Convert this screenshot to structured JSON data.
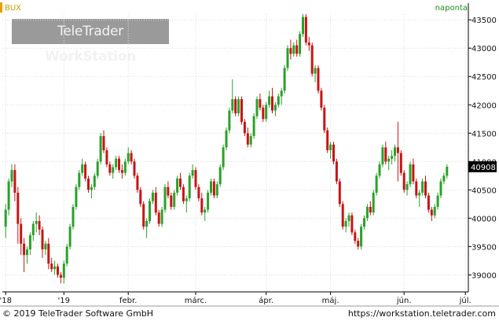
{
  "header": {
    "symbol": "BUX",
    "frequency": "naponta"
  },
  "watermark": {
    "brand_light": "TeleTrader",
    "brand_bold": "WorkStation"
  },
  "footer": {
    "copyright": "© 2019 TeleTrader Software GmbH",
    "url": "https://workstation.teletrader.com"
  },
  "colors": {
    "up": "#2aa12a",
    "down": "#c81414",
    "grid": "#dcdcdc",
    "axis": "#000000",
    "label_bg": "#000000"
  },
  "chart_data": {
    "type": "candlestick",
    "title": "BUX",
    "ylim": [
      38700,
      43600
    ],
    "y_ticks": [
      39000,
      39500,
      40000,
      40500,
      41000,
      41500,
      42000,
      42500,
      43000,
      43500
    ],
    "y_tick_labels": [
      "39000",
      "39500",
      "40000",
      "40500",
      "41000",
      "41500",
      "42000",
      "42500",
      "43000",
      "43500"
    ],
    "x_labels": [
      {
        "label": "'18",
        "index": 0
      },
      {
        "label": "'19",
        "index": 19
      },
      {
        "label": "febr.",
        "index": 40
      },
      {
        "label": "márc.",
        "index": 62
      },
      {
        "label": "ápr.",
        "index": 85
      },
      {
        "label": "máj.",
        "index": 106
      },
      {
        "label": "jún.",
        "index": 130
      },
      {
        "label": "júl.",
        "index": 150
      }
    ],
    "last_value": 40908,
    "last_value_label": "40908",
    "grid": true,
    "candles": [
      [
        39850,
        40250,
        39650,
        40150
      ],
      [
        40150,
        40700,
        40050,
        40650
      ],
      [
        40650,
        40950,
        40550,
        40850
      ],
      [
        40850,
        40950,
        40300,
        40450
      ],
      [
        40450,
        40550,
        39550,
        39900
      ],
      [
        39900,
        40000,
        39350,
        39550
      ],
      [
        39550,
        39650,
        39050,
        39350
      ],
      [
        39350,
        39500,
        39200,
        39450
      ],
      [
        39450,
        39750,
        39350,
        39700
      ],
      [
        39700,
        39950,
        39600,
        39900
      ],
      [
        39900,
        40100,
        39750,
        39950
      ],
      [
        39950,
        40050,
        39700,
        39800
      ],
      [
        39800,
        39850,
        39300,
        39450
      ],
      [
        39450,
        39600,
        39350,
        39550
      ],
      [
        39550,
        39650,
        39100,
        39200
      ],
      [
        39200,
        39300,
        39050,
        39100
      ],
      [
        39100,
        39250,
        39000,
        39150
      ],
      [
        39150,
        39200,
        38950,
        39000
      ],
      [
        39000,
        39050,
        38850,
        38950
      ],
      [
        38950,
        39250,
        38850,
        39200
      ],
      [
        39200,
        39550,
        39150,
        39500
      ],
      [
        39500,
        39900,
        39450,
        39850
      ],
      [
        39850,
        40250,
        39800,
        40200
      ],
      [
        40200,
        40600,
        40150,
        40550
      ],
      [
        40550,
        40850,
        40500,
        40800
      ],
      [
        40800,
        41050,
        40750,
        40950
      ],
      [
        40950,
        41000,
        40650,
        40700
      ],
      [
        40700,
        40750,
        40450,
        40500
      ],
      [
        40500,
        40600,
        40350,
        40550
      ],
      [
        40550,
        40800,
        40500,
        40750
      ],
      [
        40750,
        41050,
        40700,
        41000
      ],
      [
        41000,
        41500,
        40950,
        41450
      ],
      [
        41450,
        41550,
        41150,
        41200
      ],
      [
        41200,
        41250,
        40900,
        40950
      ],
      [
        40950,
        41000,
        40750,
        40800
      ],
      [
        40800,
        40950,
        40700,
        40900
      ],
      [
        40900,
        41100,
        40850,
        41050
      ],
      [
        41050,
        41100,
        40800,
        40850
      ],
      [
        40850,
        40950,
        40700,
        40800
      ],
      [
        40800,
        41050,
        40750,
        41000
      ],
      [
        41000,
        41250,
        40950,
        41150
      ],
      [
        41150,
        41200,
        40950,
        41000
      ],
      [
        41000,
        41050,
        40700,
        40750
      ],
      [
        40750,
        40800,
        40450,
        40500
      ],
      [
        40500,
        40550,
        40200,
        40250
      ],
      [
        40250,
        40300,
        39800,
        39850
      ],
      [
        39850,
        40000,
        39650,
        39950
      ],
      [
        39950,
        40350,
        39900,
        40300
      ],
      [
        40300,
        40500,
        40250,
        40450
      ],
      [
        40450,
        40550,
        40050,
        40100
      ],
      [
        40100,
        40150,
        39850,
        39900
      ],
      [
        39900,
        40200,
        39850,
        40150
      ],
      [
        40150,
        40600,
        40100,
        40550
      ],
      [
        40550,
        40650,
        40350,
        40400
      ],
      [
        40400,
        40450,
        40150,
        40200
      ],
      [
        40200,
        40500,
        40150,
        40450
      ],
      [
        40450,
        40750,
        40400,
        40700
      ],
      [
        40700,
        40800,
        40500,
        40550
      ],
      [
        40550,
        40600,
        40250,
        40300
      ],
      [
        40300,
        40400,
        40100,
        40350
      ],
      [
        40350,
        40800,
        40300,
        40750
      ],
      [
        40750,
        40950,
        40700,
        40850
      ],
      [
        40850,
        40900,
        40500,
        40550
      ],
      [
        40550,
        40600,
        40300,
        40350
      ],
      [
        40350,
        40450,
        40050,
        40100
      ],
      [
        40100,
        40200,
        39950,
        40150
      ],
      [
        40150,
        40500,
        40100,
        40450
      ],
      [
        40450,
        40700,
        40400,
        40650
      ],
      [
        40650,
        40700,
        40350,
        40400
      ],
      [
        40400,
        40650,
        40350,
        40600
      ],
      [
        40600,
        40950,
        40550,
        40900
      ],
      [
        40900,
        41300,
        40850,
        41250
      ],
      [
        41250,
        41600,
        41200,
        41550
      ],
      [
        41550,
        41950,
        41500,
        41900
      ],
      [
        41900,
        42450,
        41850,
        42100
      ],
      [
        42100,
        42150,
        41800,
        41850
      ],
      [
        41850,
        42150,
        41800,
        42100
      ],
      [
        42100,
        42150,
        41650,
        41700
      ],
      [
        41700,
        41750,
        41450,
        41500
      ],
      [
        41500,
        41600,
        41250,
        41300
      ],
      [
        41300,
        41500,
        41250,
        41450
      ],
      [
        41450,
        41850,
        41400,
        41800
      ],
      [
        41800,
        42150,
        41750,
        42100
      ],
      [
        42100,
        42200,
        41900,
        41950
      ],
      [
        41950,
        42000,
        41700,
        41750
      ],
      [
        41750,
        42050,
        41700,
        42000
      ],
      [
        42000,
        42250,
        41950,
        42150
      ],
      [
        42150,
        42300,
        41850,
        41900
      ],
      [
        41900,
        42050,
        41800,
        42000
      ],
      [
        42000,
        42200,
        41950,
        42150
      ],
      [
        42150,
        42300,
        42000,
        42250
      ],
      [
        42250,
        42700,
        42200,
        42650
      ],
      [
        42650,
        43050,
        42600,
        43000
      ],
      [
        43000,
        43150,
        42800,
        42900
      ],
      [
        42900,
        43100,
        42850,
        43050
      ],
      [
        43050,
        43150,
        42850,
        42900
      ],
      [
        42900,
        43300,
        42850,
        43250
      ],
      [
        43250,
        43600,
        43200,
        43550
      ],
      [
        43550,
        43600,
        43050,
        43100
      ],
      [
        43100,
        43200,
        42950,
        43050
      ],
      [
        43050,
        43100,
        42500,
        42550
      ],
      [
        42550,
        42700,
        42400,
        42650
      ],
      [
        42650,
        42700,
        42200,
        42250
      ],
      [
        42250,
        42300,
        41900,
        41950
      ],
      [
        41950,
        42000,
        41500,
        41550
      ],
      [
        41550,
        41600,
        41150,
        41200
      ],
      [
        41200,
        41350,
        41050,
        41300
      ],
      [
        41300,
        41350,
        40950,
        41000
      ],
      [
        41000,
        41050,
        40600,
        40650
      ],
      [
        40650,
        40700,
        40200,
        40250
      ],
      [
        40250,
        40300,
        39800,
        39850
      ],
      [
        39850,
        40000,
        39750,
        39950
      ],
      [
        39950,
        40100,
        39850,
        40050
      ],
      [
        40050,
        40100,
        39700,
        39750
      ],
      [
        39750,
        39800,
        39550,
        39600
      ],
      [
        39600,
        39650,
        39450,
        39500
      ],
      [
        39500,
        39900,
        39450,
        39850
      ],
      [
        39850,
        40050,
        39800,
        40000
      ],
      [
        40000,
        40250,
        39950,
        40200
      ],
      [
        40200,
        40300,
        40050,
        40100
      ],
      [
        40100,
        40500,
        40050,
        40450
      ],
      [
        40450,
        40800,
        40400,
        40750
      ],
      [
        40750,
        41000,
        40700,
        40950
      ],
      [
        40950,
        41300,
        40900,
        41250
      ],
      [
        41250,
        41350,
        40950,
        41000
      ],
      [
        41000,
        41100,
        40850,
        41050
      ],
      [
        41050,
        41200,
        40950,
        41100
      ],
      [
        41100,
        41300,
        41000,
        41250
      ],
      [
        41250,
        41700,
        40650,
        41150
      ],
      [
        41150,
        41200,
        40750,
        40800
      ],
      [
        40800,
        40850,
        40450,
        40500
      ],
      [
        40500,
        40650,
        40400,
        40600
      ],
      [
        40600,
        41000,
        40550,
        40950
      ],
      [
        40950,
        41050,
        40600,
        40650
      ],
      [
        40650,
        40700,
        40350,
        40400
      ],
      [
        40400,
        40500,
        40200,
        40450
      ],
      [
        40450,
        40700,
        40400,
        40650
      ],
      [
        40650,
        40750,
        40350,
        40400
      ],
      [
        40400,
        40450,
        40100,
        40150
      ],
      [
        40150,
        40200,
        39950,
        40050
      ],
      [
        40050,
        40250,
        40000,
        40200
      ],
      [
        40200,
        40450,
        40150,
        40400
      ],
      [
        40400,
        40700,
        40350,
        40650
      ],
      [
        40650,
        40800,
        40600,
        40750
      ],
      [
        40750,
        40950,
        40700,
        40908
      ]
    ]
  }
}
